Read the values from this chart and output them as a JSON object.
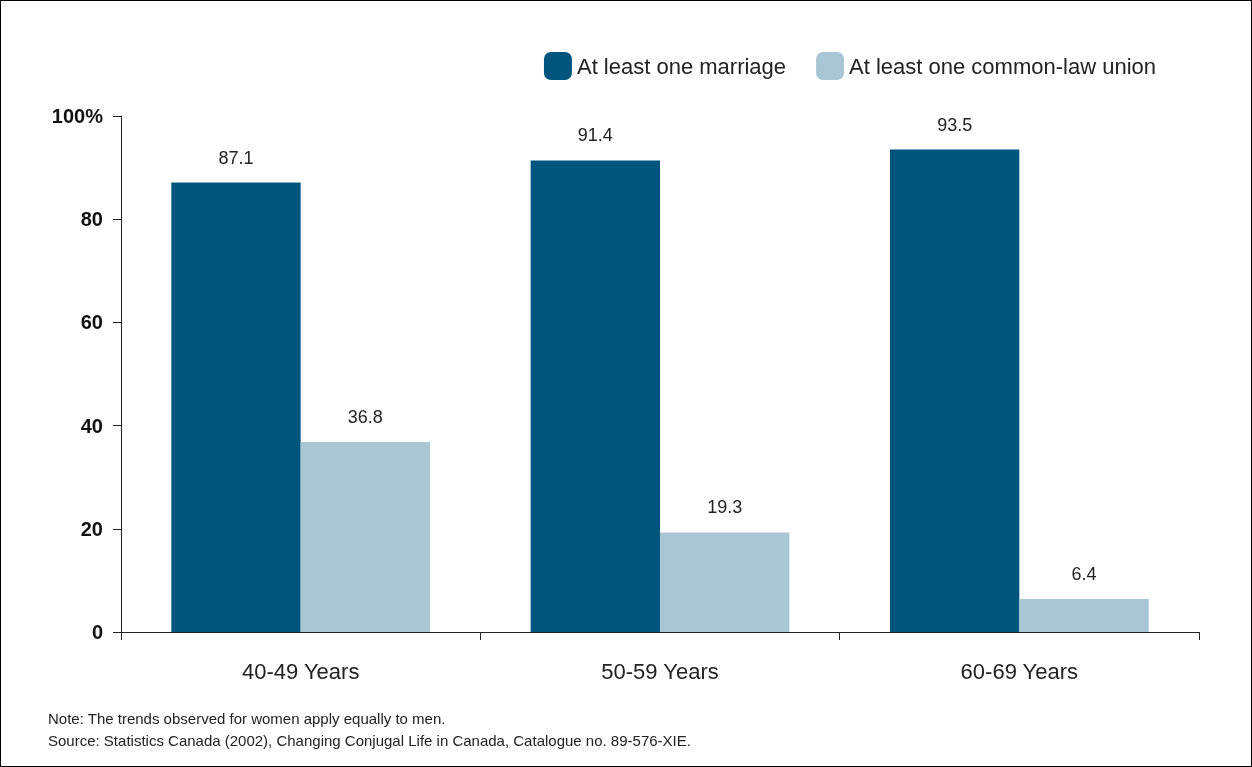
{
  "chart_data": {
    "type": "bar",
    "categories": [
      "40-49 Years",
      "50-59 Years",
      "60-69 Years"
    ],
    "series": [
      {
        "name": "At least one marriage",
        "color": "#00557f",
        "values": [
          87.1,
          91.4,
          93.5
        ]
      },
      {
        "name": "At least one common-law union",
        "color": "#a9c6d4",
        "values": [
          36.8,
          19.3,
          6.4
        ]
      }
    ],
    "ylim": [
      0,
      100
    ],
    "yticks": [
      0,
      20,
      40,
      60,
      80,
      {
        "value": 100,
        "label": "100%"
      }
    ],
    "grid": false,
    "legend": "top right",
    "data_labels": true,
    "annotations": [
      "Note: The trends observed for women apply equally to men.",
      "Source: Statistics Canada (2002), Changing Conjugal Life in Canada, Catalogue no. 89-576-XIE."
    ]
  }
}
